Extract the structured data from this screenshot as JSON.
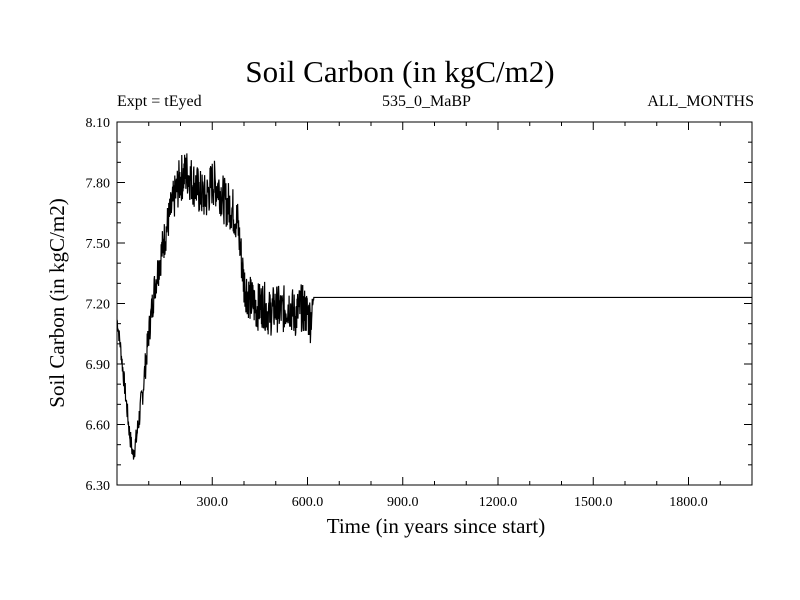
{
  "chart_data": {
    "type": "line",
    "title": "Soil Carbon (in kgC/m2)",
    "subtitle_left": "Expt = tEyed",
    "subtitle_center": "535_0_MaBP",
    "subtitle_right": "ALL_MONTHS",
    "xlabel": "Time (in years since start)",
    "ylabel": "Soil Carbon (in kgC/m2)",
    "xlim": [
      0,
      2000
    ],
    "ylim": [
      6.3,
      8.1
    ],
    "xticks": [
      300,
      600,
      900,
      1200,
      1500,
      1800
    ],
    "xtick_labels": [
      "300.0",
      "600.0",
      "900.0",
      "1200.0",
      "1500.0",
      "1800.0"
    ],
    "yticks": [
      6.3,
      6.6,
      6.9,
      7.2,
      7.5,
      7.8,
      8.1
    ],
    "ytick_labels": [
      "6.30",
      "6.60",
      "6.90",
      "7.20",
      "7.50",
      "7.80",
      "8.10"
    ],
    "series": [
      {
        "name": "Soil Carbon",
        "x": [
          0,
          10,
          20,
          30,
          40,
          50,
          60,
          80,
          100,
          120,
          140,
          160,
          180,
          200,
          220,
          240,
          260,
          280,
          300,
          320,
          340,
          360,
          380,
          400,
          420,
          440,
          460,
          480,
          500,
          520,
          540,
          560,
          580,
          600,
          610,
          620,
          700,
          900,
          1200,
          1500,
          1800,
          2000
        ],
        "y": [
          7.12,
          7.0,
          6.85,
          6.7,
          6.55,
          6.45,
          6.52,
          6.75,
          7.05,
          7.3,
          7.45,
          7.6,
          7.72,
          7.82,
          7.85,
          7.8,
          7.75,
          7.72,
          7.8,
          7.78,
          7.7,
          7.68,
          7.6,
          7.3,
          7.22,
          7.18,
          7.2,
          7.15,
          7.18,
          7.16,
          7.2,
          7.14,
          7.18,
          7.15,
          7.12,
          7.23,
          7.23,
          7.23,
          7.23,
          7.23,
          7.23,
          7.23
        ],
        "noise_amplitude": [
          0.04,
          0.04,
          0.05,
          0.05,
          0.05,
          0.05,
          0.06,
          0.07,
          0.08,
          0.09,
          0.1,
          0.1,
          0.11,
          0.12,
          0.12,
          0.12,
          0.12,
          0.12,
          0.12,
          0.12,
          0.12,
          0.12,
          0.12,
          0.12,
          0.12,
          0.12,
          0.12,
          0.12,
          0.12,
          0.12,
          0.12,
          0.12,
          0.12,
          0.12,
          0.12,
          0,
          0,
          0,
          0,
          0,
          0,
          0
        ]
      }
    ]
  }
}
